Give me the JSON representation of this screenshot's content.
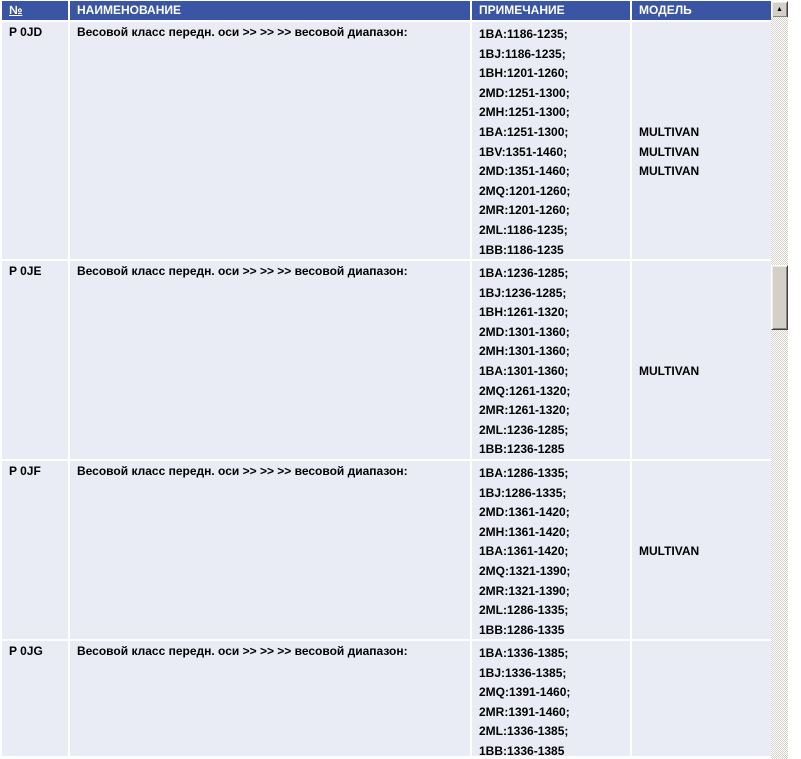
{
  "header": {
    "columns": [
      {
        "key": "no",
        "label": "№",
        "underlined": true
      },
      {
        "key": "name",
        "label": "НАИМЕНОВАНИЕ",
        "underlined": false
      },
      {
        "key": "note",
        "label": "ПРИМЕЧАНИЕ",
        "underlined": false
      },
      {
        "key": "model",
        "label": "МОДЕЛЬ",
        "underlined": false
      }
    ]
  },
  "rows": [
    {
      "no": "P 0JD",
      "name": "Весовой класс передн. оси >> >> >> весовой диапазон:",
      "notes": [
        "1BA:1186-1235;",
        "1BJ:1186-1235;",
        "1BH:1201-1260;",
        "2MD:1251-1300;",
        "2MH:1251-1300;",
        "1BA:1251-1300;",
        "1BV:1351-1460;",
        "2MD:1351-1460;",
        "2MQ:1201-1260;",
        "2MR:1201-1260;",
        "2ML:1186-1235;",
        "1BB:1186-1235"
      ],
      "models": [
        {
          "text": "MULTIVAN",
          "line": 5
        },
        {
          "text": "MULTIVAN",
          "line": 6
        },
        {
          "text": "MULTIVAN",
          "line": 7
        }
      ]
    },
    {
      "no": "P 0JE",
      "name": "Весовой класс передн. оси >> >> >> весовой диапазон:",
      "notes": [
        "1BA:1236-1285;",
        "1BJ:1236-1285;",
        "1BH:1261-1320;",
        "2MD:1301-1360;",
        "2MH:1301-1360;",
        "1BA:1301-1360;",
        "2MQ:1261-1320;",
        "2MR:1261-1320;",
        "2ML:1236-1285;",
        "1BB:1236-1285"
      ],
      "models": [
        {
          "text": "MULTIVAN",
          "line": 5
        }
      ]
    },
    {
      "no": "P 0JF",
      "name": "Весовой класс передн. оси >> >> >> весовой диапазон:",
      "notes": [
        "1BA:1286-1335;",
        "1BJ:1286-1335;",
        "2MD:1361-1420;",
        "2MH:1361-1420;",
        "1BA:1361-1420;",
        "2MQ:1321-1390;",
        "2MR:1321-1390;",
        "2ML:1286-1335;",
        "1BB:1286-1335"
      ],
      "models": [
        {
          "text": "MULTIVAN",
          "line": 4
        }
      ]
    },
    {
      "no": "P 0JG",
      "name": "Весовой класс передн. оси >> >> >> весовой диапазон:",
      "notes": [
        "1BA:1336-1385;",
        "1BJ:1336-1385;",
        "2MQ:1391-1460;",
        "2MR:1391-1460;",
        "2ML:1336-1385;",
        "1BB:1336-1385"
      ],
      "models": []
    }
  ],
  "colors": {
    "header_bg": "#3A55A3",
    "header_text": "#FFFFFF",
    "cell_bg": "#EAECF5",
    "separator": "#FFFFFF",
    "body_text": "#000000"
  },
  "scrollbar": {
    "up_arrow_glyph": "▲"
  }
}
